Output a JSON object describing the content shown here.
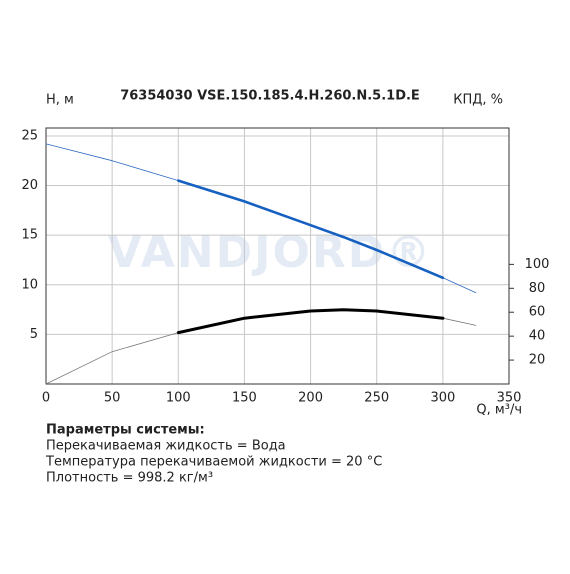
{
  "chart_data": {
    "type": "line",
    "title": "76354030 VSE.150.185.4.H.260.N.5.1D.E",
    "watermark": "VANDJORD®",
    "y_label": "H, м",
    "y2_label": "КПД, %",
    "x_label": "Q, м³/ч",
    "x": [
      0,
      50,
      100,
      150,
      200,
      225,
      250,
      300,
      325
    ],
    "series": [
      {
        "color": "#2f6bc4",
        "width": 0.8,
        "values": [
          24.2,
          22.5,
          20.5,
          18.4,
          16,
          14.8,
          13.5,
          10.7,
          9.2
        ]
      },
      {
        "color": "#1560c0",
        "width": 2.6,
        "values": [
          null,
          null,
          20.5,
          18.4,
          16,
          14.8,
          13.5,
          10.7,
          null
        ]
      },
      {
        "color": "#777777",
        "width": 0.8,
        "axis": "y2",
        "values": [
          0,
          27,
          43,
          55,
          61,
          62,
          61,
          55,
          49
        ]
      },
      {
        "color": "#000000",
        "width": 3,
        "axis": "y2",
        "values": [
          null,
          null,
          43,
          55,
          61,
          62,
          61,
          55,
          null
        ]
      }
    ],
    "xlim": [
      0,
      350
    ],
    "xticks": [
      0,
      50,
      100,
      150,
      200,
      250,
      300,
      350
    ],
    "ylim": [
      0,
      25.8
    ],
    "yticks": [
      5,
      10,
      15,
      20,
      25
    ],
    "y2lim": [
      0,
      214
    ],
    "y2ticks": [
      20,
      40,
      60,
      80,
      100
    ],
    "grid": true
  },
  "notes": {
    "heading": "Параметры системы:",
    "lines": [
      "Перекачиваемая жидкость = Вода",
      "Температура перекачиваемой жидкости = 20 °C",
      "Плотность = 998.2 кг/м³"
    ]
  }
}
